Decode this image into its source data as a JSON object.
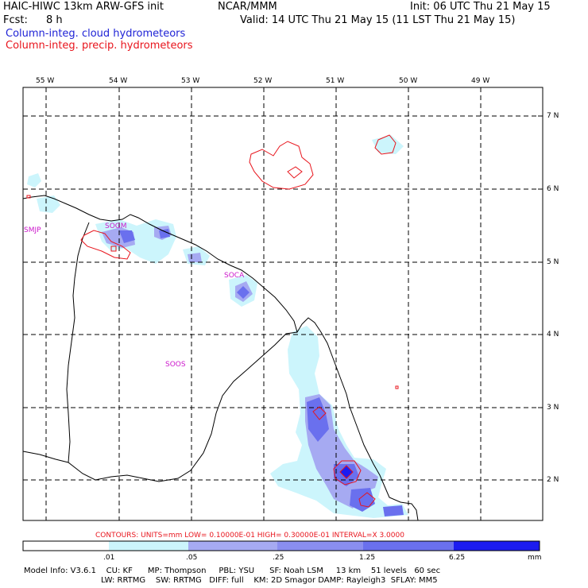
{
  "header": {
    "model": "HAIC-HIWC 13km ARW-GFS init",
    "org": "NCAR/MMM",
    "init": "Init: 06 UTC Thu 21 May 15",
    "fcst_label": "Fcst:",
    "fcst_value": "8 h",
    "valid": "Valid: 14 UTC Thu 21 May 15 (11 LST Thu 21 May 15)",
    "field_cloud": "Column-integ. cloud hydrometeors",
    "field_precip": "Column-integ. precip. hydrometeors"
  },
  "colors": {
    "cloud_title": "#1f23d6",
    "precip_title": "#e8141c",
    "station": "#cc18cc",
    "shade_1": "#ccf5fc",
    "shade_2": "#a6aaf2",
    "shade_3": "#6a70ee",
    "shade_4": "#1c1cf0",
    "contour": "#e8141c"
  },
  "map": {
    "lon_labels": [
      "55 W",
      "54 W",
      "53 W",
      "52 W",
      "51 W",
      "50 W",
      "49 W"
    ],
    "lat_labels": [
      "7 N",
      "6 N",
      "5 N",
      "4 N",
      "3 N",
      "2 N"
    ],
    "stations": [
      {
        "id": "SMJP"
      },
      {
        "id": "SOGM"
      },
      {
        "id": "SOCA"
      },
      {
        "id": "SOOS"
      }
    ]
  },
  "contours_note": "CONTOURS:  UNITS=mm  LOW= 0.10000E-01  HIGH= 0.30000E-01  INTERVAL=X  3.0000",
  "colorbar": {
    "ticks": [
      ".01",
      ".05",
      ".25",
      "1.25",
      "6.25"
    ],
    "units": "mm"
  },
  "model_info": {
    "line1": "Model Info: V3.6.1    CU: KF      MP: Thompson     PBL: YSU      SF: Noah LSM     13 km    51 levels   60 sec",
    "line2": "LW: RRTMG    SW: RRTMG   DIFF: full    KM: 2D Smagor DAMP: Rayleigh3  SFLAY: MM5"
  }
}
